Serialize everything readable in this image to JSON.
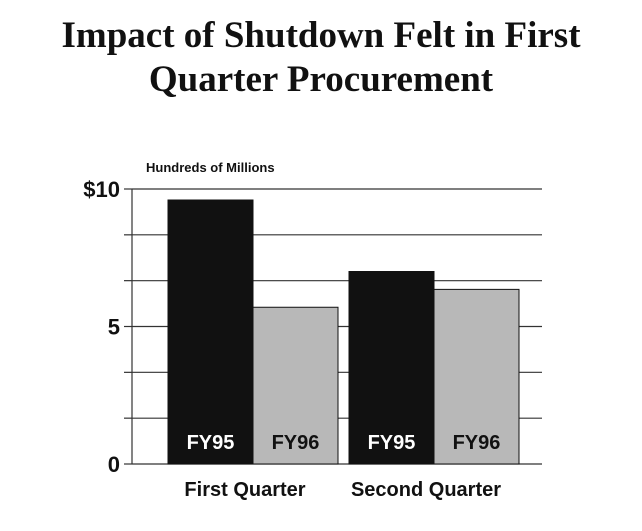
{
  "chart_data": {
    "type": "bar",
    "title_lines": [
      "Impact of Shutdown Felt in First",
      "Quarter Procurement"
    ],
    "ylabel": "Hundreds of Millions",
    "ylim": [
      0,
      10
    ],
    "yticks": [
      {
        "value": 10,
        "label": "$10"
      },
      {
        "value": 5,
        "label": "5"
      },
      {
        "value": 0,
        "label": "0"
      }
    ],
    "categories": [
      "First Quarter",
      "Second Quarter"
    ],
    "series": [
      {
        "name": "FY95",
        "values": [
          9.6,
          7.0
        ],
        "color": "#111111",
        "label_color": "#ffffff"
      },
      {
        "name": "FY96",
        "values": [
          5.7,
          6.35
        ],
        "color": "#b8b8b8",
        "label_color": "#111111"
      }
    ]
  }
}
